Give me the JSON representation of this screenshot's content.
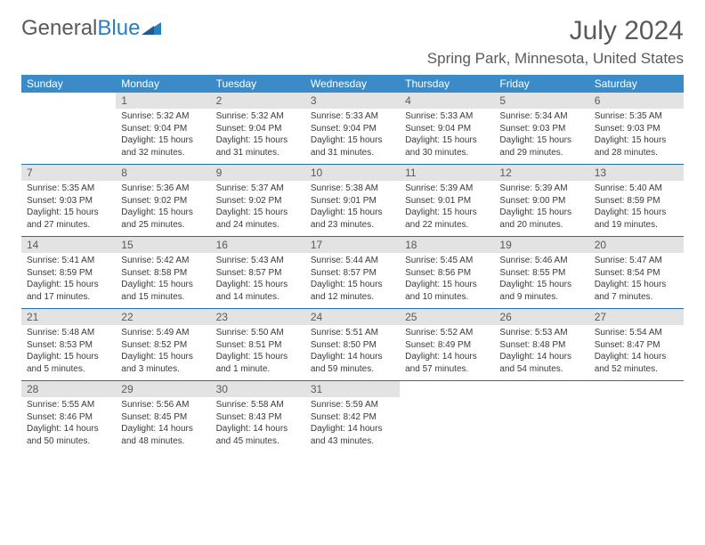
{
  "brand": {
    "part1": "General",
    "part2": "Blue"
  },
  "title": "July 2024",
  "location": "Spring Park, Minnesota, United States",
  "day_headers": [
    "Sunday",
    "Monday",
    "Tuesday",
    "Wednesday",
    "Thursday",
    "Friday",
    "Saturday"
  ],
  "header_bg": "#3b8bc8",
  "header_fg": "#ffffff",
  "date_row_bg": "#e3e3e3",
  "row_border": "#2a6ea8",
  "text_color": "#5a5a5a",
  "weeks": [
    {
      "dates": [
        "",
        "1",
        "2",
        "3",
        "4",
        "5",
        "6"
      ],
      "cells": [
        "",
        "Sunrise: 5:32 AM\nSunset: 9:04 PM\nDaylight: 15 hours and 32 minutes.",
        "Sunrise: 5:32 AM\nSunset: 9:04 PM\nDaylight: 15 hours and 31 minutes.",
        "Sunrise: 5:33 AM\nSunset: 9:04 PM\nDaylight: 15 hours and 31 minutes.",
        "Sunrise: 5:33 AM\nSunset: 9:04 PM\nDaylight: 15 hours and 30 minutes.",
        "Sunrise: 5:34 AM\nSunset: 9:03 PM\nDaylight: 15 hours and 29 minutes.",
        "Sunrise: 5:35 AM\nSunset: 9:03 PM\nDaylight: 15 hours and 28 minutes."
      ]
    },
    {
      "dates": [
        "7",
        "8",
        "9",
        "10",
        "11",
        "12",
        "13"
      ],
      "cells": [
        "Sunrise: 5:35 AM\nSunset: 9:03 PM\nDaylight: 15 hours and 27 minutes.",
        "Sunrise: 5:36 AM\nSunset: 9:02 PM\nDaylight: 15 hours and 25 minutes.",
        "Sunrise: 5:37 AM\nSunset: 9:02 PM\nDaylight: 15 hours and 24 minutes.",
        "Sunrise: 5:38 AM\nSunset: 9:01 PM\nDaylight: 15 hours and 23 minutes.",
        "Sunrise: 5:39 AM\nSunset: 9:01 PM\nDaylight: 15 hours and 22 minutes.",
        "Sunrise: 5:39 AM\nSunset: 9:00 PM\nDaylight: 15 hours and 20 minutes.",
        "Sunrise: 5:40 AM\nSunset: 8:59 PM\nDaylight: 15 hours and 19 minutes."
      ]
    },
    {
      "dates": [
        "14",
        "15",
        "16",
        "17",
        "18",
        "19",
        "20"
      ],
      "cells": [
        "Sunrise: 5:41 AM\nSunset: 8:59 PM\nDaylight: 15 hours and 17 minutes.",
        "Sunrise: 5:42 AM\nSunset: 8:58 PM\nDaylight: 15 hours and 15 minutes.",
        "Sunrise: 5:43 AM\nSunset: 8:57 PM\nDaylight: 15 hours and 14 minutes.",
        "Sunrise: 5:44 AM\nSunset: 8:57 PM\nDaylight: 15 hours and 12 minutes.",
        "Sunrise: 5:45 AM\nSunset: 8:56 PM\nDaylight: 15 hours and 10 minutes.",
        "Sunrise: 5:46 AM\nSunset: 8:55 PM\nDaylight: 15 hours and 9 minutes.",
        "Sunrise: 5:47 AM\nSunset: 8:54 PM\nDaylight: 15 hours and 7 minutes."
      ]
    },
    {
      "dates": [
        "21",
        "22",
        "23",
        "24",
        "25",
        "26",
        "27"
      ],
      "cells": [
        "Sunrise: 5:48 AM\nSunset: 8:53 PM\nDaylight: 15 hours and 5 minutes.",
        "Sunrise: 5:49 AM\nSunset: 8:52 PM\nDaylight: 15 hours and 3 minutes.",
        "Sunrise: 5:50 AM\nSunset: 8:51 PM\nDaylight: 15 hours and 1 minute.",
        "Sunrise: 5:51 AM\nSunset: 8:50 PM\nDaylight: 14 hours and 59 minutes.",
        "Sunrise: 5:52 AM\nSunset: 8:49 PM\nDaylight: 14 hours and 57 minutes.",
        "Sunrise: 5:53 AM\nSunset: 8:48 PM\nDaylight: 14 hours and 54 minutes.",
        "Sunrise: 5:54 AM\nSunset: 8:47 PM\nDaylight: 14 hours and 52 minutes."
      ]
    },
    {
      "dates": [
        "28",
        "29",
        "30",
        "31",
        "",
        "",
        ""
      ],
      "cells": [
        "Sunrise: 5:55 AM\nSunset: 8:46 PM\nDaylight: 14 hours and 50 minutes.",
        "Sunrise: 5:56 AM\nSunset: 8:45 PM\nDaylight: 14 hours and 48 minutes.",
        "Sunrise: 5:58 AM\nSunset: 8:43 PM\nDaylight: 14 hours and 45 minutes.",
        "Sunrise: 5:59 AM\nSunset: 8:42 PM\nDaylight: 14 hours and 43 minutes.",
        "",
        "",
        ""
      ]
    }
  ]
}
